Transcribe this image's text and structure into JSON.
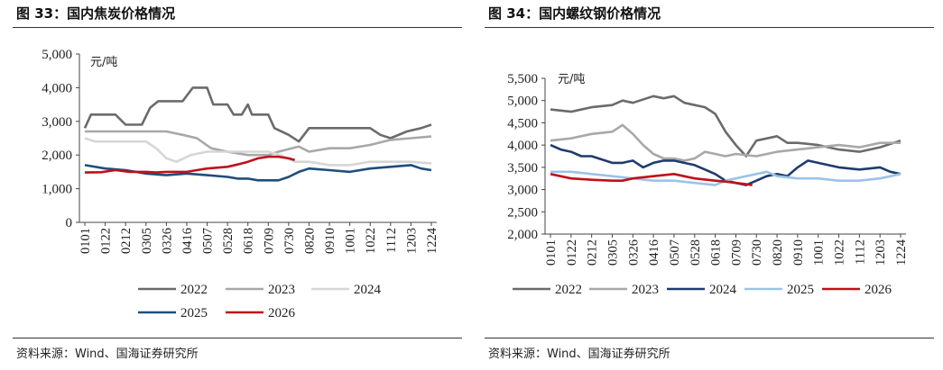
{
  "panels": [
    {
      "title": "图 33：国内焦炭价格情况",
      "source": "资料来源：Wind、国海证券研究所",
      "chart_data": {
        "type": "line",
        "unit_label": "元/吨",
        "ylim": [
          0,
          5000
        ],
        "yticks": [
          "5,000",
          "4,000",
          "3,000",
          "2,000",
          "1,000",
          "0"
        ],
        "ytick_values": [
          5000,
          4000,
          3000,
          2000,
          1000,
          0
        ],
        "x_categories": [
          "0101",
          "0122",
          "0212",
          "0305",
          "0326",
          "0416",
          "0507",
          "0528",
          "0618",
          "0709",
          "0730",
          "0820",
          "0910",
          "1001",
          "1022",
          "1112",
          "1203",
          "1224"
        ],
        "legend_position": "bottom",
        "series": [
          {
            "name": "2022",
            "color": "#6b6b6b",
            "x_end": 17,
            "values": [
              [
                0,
                2800
              ],
              [
                0.3,
                3200
              ],
              [
                1.5,
                3200
              ],
              [
                2,
                2900
              ],
              [
                2.8,
                2900
              ],
              [
                3.2,
                3400
              ],
              [
                3.6,
                3600
              ],
              [
                4.8,
                3600
              ],
              [
                5.3,
                4000
              ],
              [
                6,
                4000
              ],
              [
                6.3,
                3500
              ],
              [
                7,
                3500
              ],
              [
                7.3,
                3200
              ],
              [
                7.7,
                3200
              ],
              [
                8,
                3500
              ],
              [
                8.2,
                3200
              ],
              [
                9,
                3200
              ],
              [
                9.3,
                2800
              ],
              [
                10,
                2600
              ],
              [
                10.5,
                2400
              ],
              [
                11,
                2800
              ],
              [
                14,
                2800
              ],
              [
                14.5,
                2600
              ],
              [
                15,
                2500
              ],
              [
                15.8,
                2700
              ],
              [
                16.5,
                2800
              ],
              [
                17,
                2900
              ]
            ]
          },
          {
            "name": "2023",
            "color": "#a8a8a8",
            "x_end": 17,
            "values": [
              [
                0,
                2700
              ],
              [
                4,
                2700
              ],
              [
                4.8,
                2600
              ],
              [
                5.5,
                2500
              ],
              [
                6.2,
                2200
              ],
              [
                7,
                2100
              ],
              [
                8,
                2000
              ],
              [
                9,
                2000
              ],
              [
                9.5,
                2100
              ],
              [
                10.5,
                2250
              ],
              [
                11,
                2100
              ],
              [
                12,
                2200
              ],
              [
                13,
                2200
              ],
              [
                14,
                2300
              ],
              [
                15,
                2450
              ],
              [
                16,
                2500
              ],
              [
                17,
                2550
              ]
            ]
          },
          {
            "name": "2024",
            "color": "#d6d6d6",
            "x_end": 17,
            "values": [
              [
                0,
                2500
              ],
              [
                0.5,
                2400
              ],
              [
                3,
                2400
              ],
              [
                3.5,
                2200
              ],
              [
                4,
                1900
              ],
              [
                4.5,
                1800
              ],
              [
                5.2,
                2000
              ],
              [
                6,
                2100
              ],
              [
                8,
                2100
              ],
              [
                9,
                2100
              ],
              [
                9.6,
                2000
              ],
              [
                10.3,
                1800
              ],
              [
                11,
                1800
              ],
              [
                12,
                1700
              ],
              [
                13,
                1700
              ],
              [
                14,
                1800
              ],
              [
                15,
                1800
              ],
              [
                16,
                1800
              ],
              [
                17,
                1750
              ]
            ]
          },
          {
            "name": "2025",
            "color": "#1f4e7a",
            "x_end": 17,
            "values": [
              [
                0,
                1700
              ],
              [
                1,
                1600
              ],
              [
                2,
                1550
              ],
              [
                3,
                1450
              ],
              [
                4,
                1400
              ],
              [
                5,
                1450
              ],
              [
                6,
                1400
              ],
              [
                7,
                1350
              ],
              [
                7.5,
                1300
              ],
              [
                8,
                1300
              ],
              [
                8.5,
                1250
              ],
              [
                9.5,
                1250
              ],
              [
                10,
                1350
              ],
              [
                10.5,
                1500
              ],
              [
                11,
                1600
              ],
              [
                12,
                1550
              ],
              [
                13,
                1500
              ],
              [
                14,
                1600
              ],
              [
                15,
                1650
              ],
              [
                16,
                1700
              ],
              [
                16.5,
                1600
              ],
              [
                17,
                1550
              ]
            ]
          },
          {
            "name": "2026",
            "color": "#c0101a",
            "x_end": 10.3,
            "values": [
              [
                0,
                1480
              ],
              [
                0.8,
                1490
              ],
              [
                1.5,
                1550
              ],
              [
                2.2,
                1500
              ],
              [
                3,
                1500
              ],
              [
                3.5,
                1480
              ],
              [
                4,
                1500
              ],
              [
                5,
                1500
              ],
              [
                5.5,
                1550
              ],
              [
                6,
                1600
              ],
              [
                7,
                1650
              ],
              [
                7.5,
                1720
              ],
              [
                8,
                1800
              ],
              [
                8.5,
                1900
              ],
              [
                9,
                1950
              ],
              [
                9.5,
                1950
              ],
              [
                10,
                1900
              ],
              [
                10.3,
                1850
              ]
            ]
          }
        ]
      }
    },
    {
      "title": "图 34：国内螺纹钢价格情况",
      "source": "资料来源：Wind、国海证券研究所",
      "chart_data": {
        "type": "line",
        "unit_label": "元/吨",
        "ylim": [
          2000,
          5500
        ],
        "yticks": [
          "5,500",
          "5,000",
          "4,500",
          "4,000",
          "3,500",
          "3,000",
          "2,500",
          "2,000"
        ],
        "ytick_values": [
          5500,
          5000,
          4500,
          4000,
          3500,
          3000,
          2500,
          2000
        ],
        "x_categories": [
          "0101",
          "0122",
          "0212",
          "0305",
          "0326",
          "0416",
          "0507",
          "0528",
          "0618",
          "0709",
          "0730",
          "0820",
          "0910",
          "1001",
          "1022",
          "1112",
          "1203",
          "1224"
        ],
        "legend_position": "bottom",
        "series": [
          {
            "name": "2022",
            "color": "#6b6b6b",
            "values": [
              [
                0,
                4800
              ],
              [
                1,
                4750
              ],
              [
                2,
                4850
              ],
              [
                3,
                4900
              ],
              [
                3.5,
                5000
              ],
              [
                4,
                4950
              ],
              [
                5,
                5100
              ],
              [
                5.5,
                5050
              ],
              [
                6,
                5100
              ],
              [
                6.5,
                4950
              ],
              [
                7,
                4900
              ],
              [
                7.5,
                4850
              ],
              [
                8,
                4700
              ],
              [
                8.5,
                4300
              ],
              [
                9,
                4000
              ],
              [
                9.5,
                3750
              ],
              [
                10,
                4100
              ],
              [
                11,
                4200
              ],
              [
                11.5,
                4050
              ],
              [
                12,
                4050
              ],
              [
                13,
                4000
              ],
              [
                14,
                3900
              ],
              [
                15,
                3850
              ],
              [
                16,
                3950
              ],
              [
                17,
                4100
              ]
            ]
          },
          {
            "name": "2023",
            "color": "#a8a8a8",
            "values": [
              [
                0,
                4100
              ],
              [
                1,
                4150
              ],
              [
                2,
                4250
              ],
              [
                3,
                4300
              ],
              [
                3.5,
                4450
              ],
              [
                4,
                4250
              ],
              [
                4.5,
                4000
              ],
              [
                5,
                3800
              ],
              [
                5.5,
                3700
              ],
              [
                6,
                3700
              ],
              [
                6.5,
                3650
              ],
              [
                7,
                3700
              ],
              [
                7.5,
                3850
              ],
              [
                8,
                3800
              ],
              [
                8.5,
                3750
              ],
              [
                9,
                3800
              ],
              [
                10,
                3750
              ],
              [
                11,
                3850
              ],
              [
                12,
                3900
              ],
              [
                13,
                3950
              ],
              [
                14,
                4000
              ],
              [
                15,
                3950
              ],
              [
                16,
                4050
              ],
              [
                17,
                4050
              ]
            ]
          },
          {
            "name": "2024",
            "color": "#1f3b6e",
            "values": [
              [
                0,
                4000
              ],
              [
                0.5,
                3900
              ],
              [
                1,
                3850
              ],
              [
                1.5,
                3750
              ],
              [
                2,
                3750
              ],
              [
                3,
                3600
              ],
              [
                3.5,
                3600
              ],
              [
                4,
                3650
              ],
              [
                4.5,
                3500
              ],
              [
                5,
                3600
              ],
              [
                5.5,
                3650
              ],
              [
                6,
                3650
              ],
              [
                7,
                3550
              ],
              [
                7.5,
                3450
              ],
              [
                8,
                3350
              ],
              [
                8.5,
                3200
              ],
              [
                9,
                3150
              ],
              [
                9.5,
                3100
              ],
              [
                10,
                3200
              ],
              [
                10.5,
                3300
              ],
              [
                11,
                3350
              ],
              [
                11.5,
                3300
              ],
              [
                12,
                3500
              ],
              [
                12.5,
                3650
              ],
              [
                13,
                3600
              ],
              [
                14,
                3500
              ],
              [
                15,
                3450
              ],
              [
                16,
                3500
              ],
              [
                16.5,
                3400
              ],
              [
                17,
                3350
              ]
            ]
          },
          {
            "name": "2025",
            "color": "#9cc3e6",
            "values": [
              [
                0,
                3400
              ],
              [
                1,
                3400
              ],
              [
                2,
                3350
              ],
              [
                3,
                3300
              ],
              [
                4,
                3250
              ],
              [
                5,
                3200
              ],
              [
                6,
                3200
              ],
              [
                7,
                3150
              ],
              [
                8,
                3100
              ],
              [
                8.5,
                3200
              ],
              [
                9,
                3250
              ],
              [
                9.5,
                3300
              ],
              [
                10,
                3350
              ],
              [
                10.5,
                3400
              ],
              [
                11,
                3300
              ],
              [
                12,
                3250
              ],
              [
                13,
                3250
              ],
              [
                14,
                3200
              ],
              [
                15,
                3200
              ],
              [
                16,
                3250
              ],
              [
                17,
                3350
              ]
            ]
          },
          {
            "name": "2026",
            "color": "#c0101a",
            "x_end": 9.8,
            "values": [
              [
                0,
                3350
              ],
              [
                1,
                3250
              ],
              [
                2,
                3220
              ],
              [
                3,
                3200
              ],
              [
                3.5,
                3200
              ],
              [
                4,
                3250
              ],
              [
                5,
                3300
              ],
              [
                6,
                3350
              ],
              [
                7,
                3250
              ],
              [
                8,
                3200
              ],
              [
                8.5,
                3180
              ],
              [
                9,
                3150
              ],
              [
                9.5,
                3120
              ],
              [
                9.8,
                3100
              ]
            ]
          }
        ]
      }
    }
  ]
}
